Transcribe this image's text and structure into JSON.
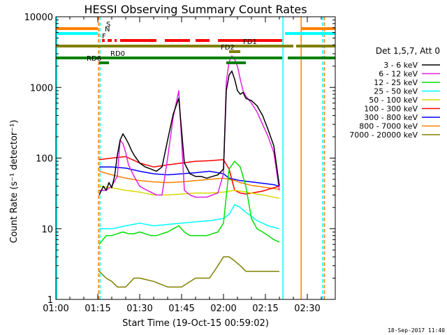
{
  "chart_data": {
    "type": "line",
    "title": "HESSI Observing Summary Count Rates",
    "xlabel": "Start Time (19-Oct-15 00:59:02)",
    "ylabel": "Count Rate (s⁻¹ detector⁻¹)",
    "timestamp": "18-Sep-2017 11:40",
    "x_units": "minutes after 01:00",
    "xlim": [
      0,
      100
    ],
    "ylim": [
      1,
      10000
    ],
    "y_scale": "log",
    "x_ticks": [
      {
        "value": 0,
        "label": "01:00"
      },
      {
        "value": 15,
        "label": "01:15"
      },
      {
        "value": 30,
        "label": "01:30"
      },
      {
        "value": 45,
        "label": "01:45"
      },
      {
        "value": 60,
        "label": "02:00"
      },
      {
        "value": 75,
        "label": "02:15"
      },
      {
        "value": 90,
        "label": "02:30"
      }
    ],
    "y_ticks": [
      {
        "value": 1,
        "label": "1"
      },
      {
        "value": 10,
        "label": "10"
      },
      {
        "value": 100,
        "label": "100"
      },
      {
        "value": 1000,
        "label": "1000"
      },
      {
        "value": 10000,
        "label": "10000"
      }
    ],
    "legend": {
      "header": "Det 1,5,7, Att 0",
      "placement": "right"
    },
    "series": [
      {
        "name": "3 - 6 keV",
        "color": "#000000",
        "x": [
          15.5,
          17,
          18,
          19,
          20,
          21,
          22,
          23,
          24,
          25,
          26,
          27,
          28,
          30,
          32,
          34,
          36,
          38,
          40,
          42,
          44,
          46,
          48,
          50,
          52,
          54,
          56,
          58,
          60,
          61,
          62,
          63,
          64,
          65,
          66,
          67,
          68,
          70,
          72,
          74,
          76,
          78,
          80
        ],
        "y": [
          30,
          40,
          35,
          45,
          38,
          55,
          110,
          180,
          220,
          190,
          160,
          130,
          110,
          85,
          75,
          70,
          65,
          75,
          180,
          420,
          700,
          85,
          60,
          55,
          55,
          52,
          55,
          58,
          70,
          900,
          1500,
          1700,
          1300,
          900,
          800,
          850,
          700,
          650,
          550,
          400,
          250,
          150,
          40
        ]
      },
      {
        "name": "6 - 12 keV",
        "color": "#e020e0",
        "x": [
          15.5,
          18,
          20,
          22,
          23,
          24,
          25,
          26,
          28,
          30,
          32,
          34,
          36,
          38,
          40,
          42,
          44,
          46,
          48,
          50,
          52,
          54,
          56,
          58,
          60,
          61,
          62,
          63,
          64,
          65,
          66,
          67,
          68,
          70,
          72,
          74,
          76,
          78,
          80
        ],
        "y": [
          35,
          35,
          40,
          55,
          180,
          160,
          120,
          80,
          55,
          40,
          36,
          33,
          30,
          30,
          100,
          380,
          900,
          35,
          30,
          28,
          28,
          28,
          30,
          32,
          60,
          1200,
          2300,
          2800,
          2500,
          2000,
          1300,
          900,
          750,
          600,
          450,
          300,
          200,
          120,
          35
        ]
      },
      {
        "name": "12 - 25 keV",
        "color": "#00e000",
        "x": [
          15.5,
          18,
          20,
          22,
          24,
          26,
          28,
          30,
          32,
          34,
          36,
          38,
          40,
          42,
          44,
          46,
          48,
          50,
          52,
          54,
          56,
          58,
          60,
          62,
          64,
          66,
          68,
          70,
          72,
          74,
          76,
          78,
          80
        ],
        "y": [
          6,
          8,
          8,
          8.5,
          9,
          8.5,
          8.5,
          9,
          8.5,
          8,
          8,
          8.5,
          9,
          10,
          11,
          9,
          8,
          8,
          8,
          8,
          8.5,
          9,
          12,
          70,
          90,
          75,
          40,
          14,
          10,
          9,
          8,
          7,
          6.5
        ]
      },
      {
        "name": "25 - 50 keV",
        "color": "#00ffff",
        "x": [
          15.5,
          20,
          25,
          30,
          35,
          40,
          45,
          50,
          55,
          60,
          62,
          64,
          66,
          68,
          70,
          72,
          74,
          76,
          78,
          80
        ],
        "y": [
          10,
          10,
          11,
          12,
          11,
          11.5,
          12,
          12.5,
          13,
          14,
          16,
          22,
          20,
          17,
          15,
          13,
          12,
          11,
          10.5,
          10
        ]
      },
      {
        "name": "50 - 100 keV",
        "color": "#d8d800",
        "x": [
          15.5,
          20,
          25,
          30,
          35,
          40,
          45,
          50,
          55,
          60,
          62,
          64,
          66,
          68,
          70,
          72,
          74,
          76,
          78,
          80
        ],
        "y": [
          40,
          38,
          35,
          33,
          30,
          30,
          31,
          32,
          32,
          33,
          34,
          35,
          34,
          33,
          32,
          31,
          30,
          29,
          28,
          27
        ]
      },
      {
        "name": "100 - 300 keV",
        "color": "#ff0000",
        "x": [
          15.5,
          20,
          25,
          30,
          35,
          40,
          45,
          50,
          55,
          60,
          62,
          64,
          66,
          68,
          70,
          72,
          74,
          76,
          78,
          80
        ],
        "y": [
          95,
          100,
          105,
          85,
          75,
          80,
          85,
          90,
          92,
          95,
          70,
          35,
          32,
          31,
          32,
          33,
          34,
          36,
          38,
          40
        ]
      },
      {
        "name": "300 - 800 keV",
        "color": "#0000ff",
        "x": [
          15.5,
          20,
          25,
          30,
          35,
          40,
          45,
          50,
          55,
          60,
          62,
          64,
          66,
          68,
          70,
          72,
          74,
          76,
          78,
          80
        ],
        "y": [
          75,
          75,
          72,
          65,
          60,
          58,
          60,
          62,
          65,
          60,
          52,
          50,
          48,
          47,
          46,
          45,
          44,
          43,
          42,
          40
        ]
      },
      {
        "name": "800 - 7000 keV",
        "color": "#ff8000",
        "x": [
          15.5,
          20,
          25,
          30,
          35,
          40,
          45,
          50,
          55,
          60,
          62,
          64,
          66,
          68,
          70,
          72,
          74,
          76,
          78,
          80
        ],
        "y": [
          65,
          58,
          52,
          48,
          46,
          45,
          46,
          48,
          50,
          52,
          50,
          48,
          45,
          43,
          41,
          40,
          39,
          38,
          37,
          36
        ]
      },
      {
        "name": "7000 - 20000 keV",
        "color": "#808000",
        "x": [
          15.5,
          18,
          20,
          22,
          25,
          28,
          30,
          35,
          40,
          45,
          50,
          55,
          58,
          60,
          62,
          64,
          66,
          68,
          70,
          72,
          74,
          76,
          78,
          80
        ],
        "y": [
          2.5,
          2,
          1.8,
          1.5,
          1.5,
          2,
          2,
          1.8,
          1.5,
          1.5,
          2,
          2,
          3,
          4,
          4,
          3.5,
          3,
          2.5,
          2.5,
          2.5,
          2.5,
          2.5,
          2.5,
          2.5
        ]
      }
    ],
    "flag_bars": [
      {
        "label": "S",
        "color": "#ff8000",
        "segments": [
          [
            0,
            15
          ],
          [
            88,
            100
          ]
        ]
      },
      {
        "label": "N",
        "color": "#00ffff",
        "segments": [
          [
            0,
            15
          ],
          [
            82,
            100
          ]
        ]
      },
      {
        "label": "F",
        "color": "#ff0000",
        "segments": [
          [
            16.5,
            17.5
          ],
          [
            18.5,
            20
          ],
          [
            21,
            21.8
          ],
          [
            23,
            36
          ],
          [
            39,
            48
          ],
          [
            50,
            55
          ],
          [
            58,
            81
          ]
        ]
      },
      {
        "label": "FD1",
        "color": "#808000",
        "segments": [
          [
            0,
            85
          ],
          [
            86,
            100
          ]
        ]
      },
      {
        "label": "FD2",
        "color": "#808000",
        "segments": [
          [
            62,
            66
          ]
        ]
      },
      {
        "label": "RD0",
        "color": "#008000",
        "segments": [
          [
            0,
            81
          ],
          [
            83,
            100
          ]
        ]
      },
      {
        "label": "RD6",
        "color": "#008000",
        "segments": [
          [
            15.5,
            19
          ],
          [
            61,
            68
          ]
        ]
      }
    ],
    "vertical_lines": [
      {
        "x": 15.3,
        "color": "#ff8000",
        "dashed": true
      },
      {
        "x": 15.8,
        "color": "#00ffff",
        "dashed": true
      },
      {
        "x": 81.3,
        "color": "#00ffff",
        "dashed": false
      },
      {
        "x": 87.8,
        "color": "#ff8000",
        "dashed": false
      },
      {
        "x": 95.5,
        "color": "#00ffff",
        "dashed": true
      },
      {
        "x": 96.1,
        "color": "#ff8000",
        "dashed": true
      },
      {
        "x": 0.3,
        "color": "#00ffff",
        "dashed": false
      }
    ]
  }
}
